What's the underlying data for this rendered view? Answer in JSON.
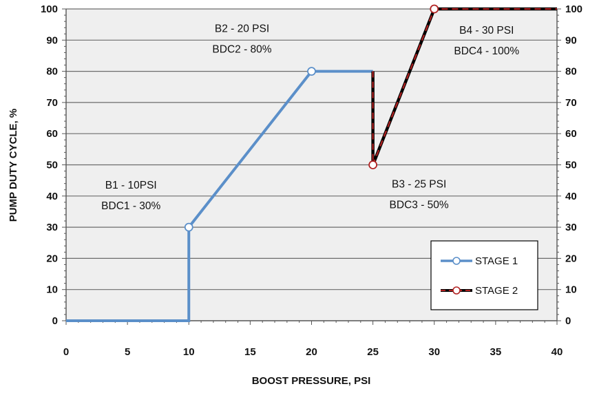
{
  "chart_data": {
    "type": "line",
    "xlabel": "BOOST PRESSURE, PSI",
    "ylabel": "PUMP DUTY CYCLE, %",
    "xlim": [
      0,
      40
    ],
    "ylim": [
      0,
      100
    ],
    "x_ticks": [
      0,
      5,
      10,
      15,
      20,
      25,
      30,
      35,
      40
    ],
    "y_ticks": [
      0,
      10,
      20,
      30,
      40,
      50,
      60,
      70,
      80,
      90,
      100
    ],
    "grid": true,
    "secondary_y_axis": true,
    "legend_position": "bottom-right",
    "series": [
      {
        "name": "STAGE 1",
        "color": "#5b8fc9",
        "points": [
          [
            0,
            0
          ],
          [
            10,
            0
          ],
          [
            10,
            30
          ],
          [
            20,
            80
          ],
          [
            25,
            80
          ]
        ],
        "markers": [
          [
            10,
            30
          ],
          [
            20,
            80
          ]
        ]
      },
      {
        "name": "STAGE 2",
        "color": "#000000",
        "dash_color": "#b22222",
        "points": [
          [
            25,
            80
          ],
          [
            25,
            50
          ],
          [
            30,
            100
          ],
          [
            40,
            100
          ]
        ],
        "markers": [
          [
            25,
            50
          ],
          [
            30,
            100
          ]
        ]
      }
    ],
    "annotations": [
      {
        "lines": [
          "B1 - 10PSI",
          "BDC1 - 30%"
        ],
        "x": 10,
        "y": 30
      },
      {
        "lines": [
          "B2 - 20 PSI",
          "BDC2 - 80%"
        ],
        "x": 20,
        "y": 80
      },
      {
        "lines": [
          "B3 - 25 PSI",
          "BDC3 - 50%"
        ],
        "x": 25,
        "y": 50
      },
      {
        "lines": [
          "B4 - 30 PSI",
          "BDC4 - 100%"
        ],
        "x": 30,
        "y": 100
      }
    ]
  }
}
